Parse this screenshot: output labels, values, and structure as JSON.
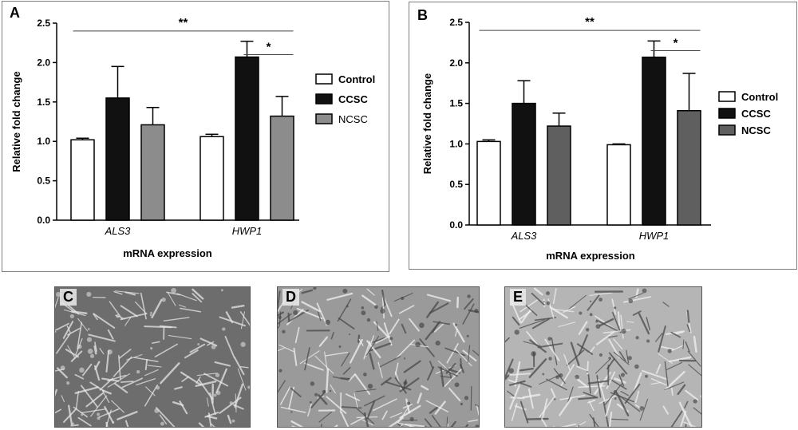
{
  "chart_data": [
    {
      "type": "bar",
      "panel_label": "A",
      "categories": [
        "ALS3",
        "HWP1"
      ],
      "series": [
        {
          "name": "Control",
          "values": [
            1.02,
            1.06
          ],
          "errors": [
            0.02,
            0.03
          ],
          "color": "#ffffff"
        },
        {
          "name": "CCSC",
          "values": [
            1.55,
            2.07
          ],
          "errors": [
            0.4,
            0.2
          ],
          "color": "#111111"
        },
        {
          "name": "NCSC",
          "values": [
            1.21,
            1.32
          ],
          "errors": [
            0.22,
            0.25
          ],
          "color": "#8c8c8c"
        }
      ],
      "xlabel": "mRNA expression",
      "ylabel": "Relative fold change",
      "ylim": [
        0,
        2.5
      ],
      "yticks": [
        "0.0",
        "0.5",
        "1.0",
        "1.5",
        "2.0",
        "2.5"
      ],
      "significance": [
        {
          "text": "**",
          "span": "ALS3 Control to HWP1 NCSC",
          "y": 2.4
        },
        {
          "text": "*",
          "span": "HWP1 CCSC to HWP1 NCSC",
          "y": 2.1
        }
      ],
      "legend_position": "right",
      "legend_style": "bold-first"
    },
    {
      "type": "bar",
      "panel_label": "B",
      "categories": [
        "ALS3",
        "HWP1"
      ],
      "series": [
        {
          "name": "Control",
          "values": [
            1.03,
            0.99
          ],
          "errors": [
            0.02,
            0.01
          ],
          "color": "#ffffff"
        },
        {
          "name": "CCSC",
          "values": [
            1.5,
            2.07
          ],
          "errors": [
            0.28,
            0.2
          ],
          "color": "#111111"
        },
        {
          "name": "NCSC",
          "values": [
            1.22,
            1.41
          ],
          "errors": [
            0.16,
            0.46
          ],
          "color": "#5f5f5f"
        }
      ],
      "xlabel": "mRNA expression",
      "ylabel": "Relative fold change",
      "ylim": [
        0,
        2.5
      ],
      "yticks": [
        "0.0",
        "0.5",
        "1.0",
        "1.5",
        "2.0",
        "2.5"
      ],
      "significance": [
        {
          "text": "**",
          "span": "ALS3 Control to HWP1 NCSC",
          "y": 2.4
        },
        {
          "text": "*",
          "span": "HWP1 CCSC to HWP1 NCSC",
          "y": 2.15
        }
      ],
      "legend_position": "right",
      "legend_style": "bold"
    }
  ],
  "micrographs": [
    {
      "label": "C",
      "description_icon": "microscopy-image",
      "tone": "dark"
    },
    {
      "label": "D",
      "description_icon": "microscopy-image",
      "tone": "mid"
    },
    {
      "label": "E",
      "description_icon": "microscopy-image",
      "tone": "light"
    }
  ]
}
